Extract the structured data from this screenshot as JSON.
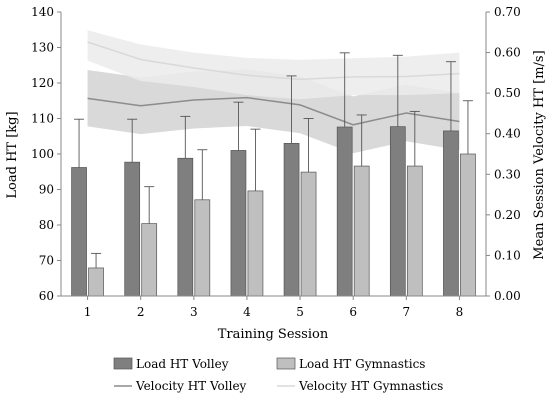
{
  "chart_data": {
    "type": "bar",
    "categories": [
      "1",
      "2",
      "3",
      "4",
      "5",
      "6",
      "7",
      "8"
    ],
    "xlabel": "Training Session",
    "ylabel": "Load HT [kg]",
    "y2label": "Mean Session Velocity HT [m/s]",
    "ylim": [
      60,
      140
    ],
    "y2lim": [
      0.0,
      0.7
    ],
    "yticks": [
      "60",
      "70",
      "80",
      "90",
      "100",
      "110",
      "120",
      "130",
      "140"
    ],
    "y2ticks": [
      "0.00",
      "0.10",
      "0.20",
      "0.30",
      "0.40",
      "0.50",
      "0.60",
      "0.70"
    ],
    "grid": false,
    "legend_position": "bottom",
    "series": [
      {
        "name": "Load HT Volley",
        "kind": "bar",
        "axis": "left",
        "color": "#7f7f7f",
        "values": [
          96.2,
          97.7,
          98.8,
          101.0,
          103.0,
          107.6,
          107.7,
          106.5
        ],
        "err_upper": [
          109.8,
          109.8,
          110.6,
          114.6,
          122.0,
          128.5,
          127.8,
          126.0
        ]
      },
      {
        "name": "Load HT Gymnastics",
        "kind": "bar",
        "axis": "left",
        "color": "#bfbfbf",
        "values": [
          67.9,
          80.4,
          87.1,
          89.6,
          94.9,
          96.6,
          96.6,
          100.0
        ],
        "err_upper": [
          72.0,
          90.8,
          101.2,
          107.0,
          110.0,
          111.0,
          112.0,
          115.0
        ]
      },
      {
        "name": "Velocity HT Volley",
        "kind": "line",
        "axis": "right",
        "color": "#8c8c8c",
        "band_color": "#d2d2d2",
        "values": [
          0.487,
          0.469,
          0.483,
          0.489,
          0.471,
          0.422,
          0.451,
          0.43
        ],
        "band_low": [
          0.418,
          0.399,
          0.413,
          0.419,
          0.401,
          0.352,
          0.381,
          0.36
        ],
        "band_high": [
          0.557,
          0.539,
          0.553,
          0.559,
          0.541,
          0.492,
          0.521,
          0.5
        ]
      },
      {
        "name": "Velocity HT Gymnastics",
        "kind": "line",
        "axis": "right",
        "color": "#d9d9d9",
        "band_color": "#ebebeb",
        "values": [
          0.626,
          0.583,
          0.562,
          0.544,
          0.534,
          0.54,
          0.541,
          0.548
        ],
        "band_low": [
          0.58,
          0.53,
          0.515,
          0.495,
          0.485,
          0.495,
          0.495,
          0.5
        ],
        "band_high": [
          0.655,
          0.62,
          0.6,
          0.587,
          0.582,
          0.586,
          0.59,
          0.6
        ]
      }
    ]
  }
}
